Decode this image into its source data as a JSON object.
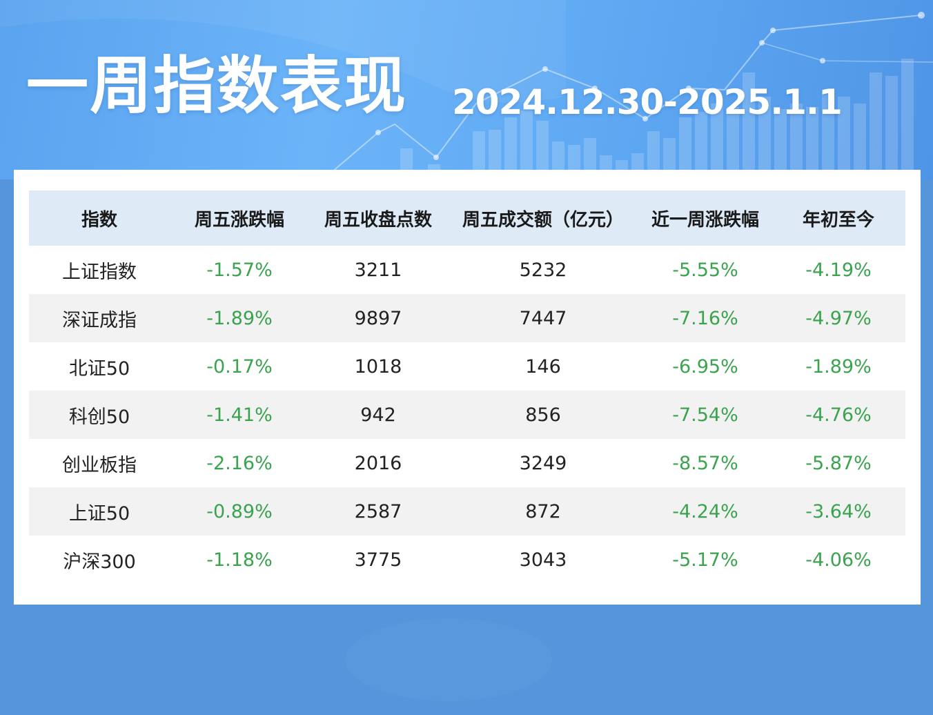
{
  "title": "一周指数表现",
  "date_range": "2024.12.30-2025.1.1",
  "colors": {
    "header_bg": "#dfeaf7",
    "negative": "#3aa34e",
    "page_bg": "#5595dc"
  },
  "chart_data": {
    "type": "table",
    "columns": [
      "指数",
      "周五涨跌幅",
      "周五收盘点数",
      "周五成交额（亿元）",
      "近一周涨跌幅",
      "年初至今"
    ],
    "rows": [
      [
        "上证指数",
        "-1.57%",
        "3211",
        "5232",
        "-5.55%",
        "-4.19%"
      ],
      [
        "深证成指",
        "-1.89%",
        "9897",
        "7447",
        "-7.16%",
        "-4.97%"
      ],
      [
        "北证50",
        "-0.17%",
        "1018",
        "146",
        "-6.95%",
        "-1.89%"
      ],
      [
        "科创50",
        "-1.41%",
        "942",
        "856",
        "-7.54%",
        "-4.76%"
      ],
      [
        "创业板指",
        "-2.16%",
        "2016",
        "3249",
        "-8.57%",
        "-5.87%"
      ],
      [
        "上证50",
        "-0.89%",
        "2587",
        "872",
        "-4.24%",
        "-3.64%"
      ],
      [
        "沪深300",
        "-1.18%",
        "3775",
        "3043",
        "-5.17%",
        "-4.06%"
      ]
    ]
  }
}
